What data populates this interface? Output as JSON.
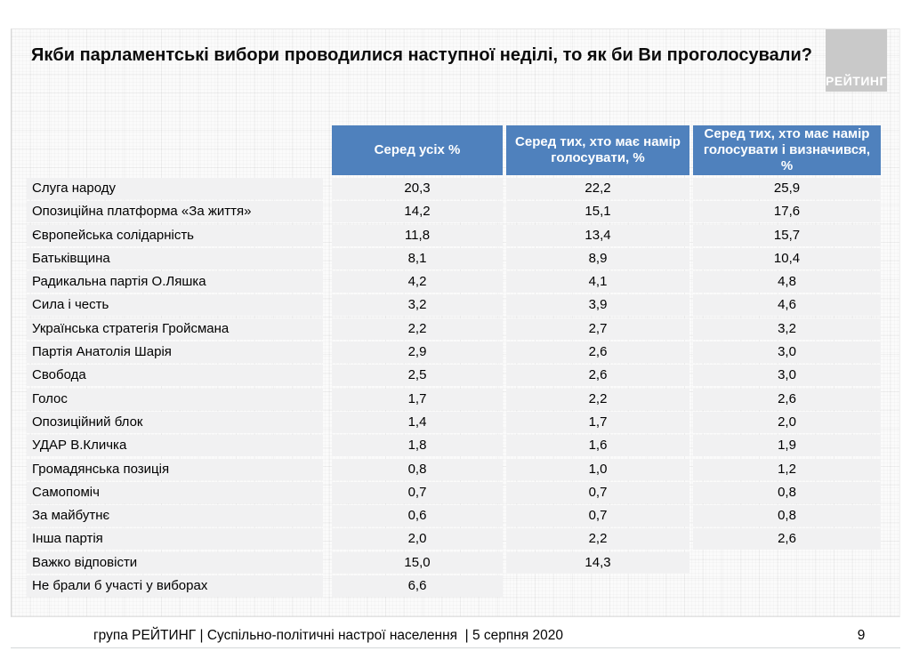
{
  "title": "Якби парламентські вибори проводилися наступної неділі, то як би Ви проголосували?",
  "logo": {
    "text": "РЕЙТИНГ"
  },
  "colors": {
    "header_blue": "#4f81bd",
    "row_gray": "#f1f1f2",
    "logo_gray": "#c9c9c9"
  },
  "chart_data": {
    "type": "table",
    "title": "Якби парламентські вибори проводилися наступної неділі, то як би Ви проголосували?",
    "columns": [
      "Серед усіх %",
      "Серед тих, хто має намір голосувати, %",
      "Серед тих, хто має намір голосувати і визначився, %"
    ],
    "rows": [
      {
        "label": "Слуга народу",
        "values": [
          "20,3",
          "22,2",
          "25,9"
        ]
      },
      {
        "label": "Опозиційна платформа «За життя»",
        "values": [
          "14,2",
          "15,1",
          "17,6"
        ]
      },
      {
        "label": "Європейська солідарність",
        "values": [
          "11,8",
          "13,4",
          "15,7"
        ]
      },
      {
        "label": "Батьківщина",
        "values": [
          "8,1",
          "8,9",
          "10,4"
        ]
      },
      {
        "label": "Радикальна партія О.Ляшка",
        "values": [
          "4,2",
          "4,1",
          "4,8"
        ]
      },
      {
        "label": "Сила і честь",
        "values": [
          "3,2",
          "3,9",
          "4,6"
        ]
      },
      {
        "label": "Українська стратегія Гройсмана",
        "values": [
          "2,2",
          "2,7",
          "3,2"
        ]
      },
      {
        "label": "Партія Анатолія Шарія",
        "values": [
          "2,9",
          "2,6",
          "3,0"
        ]
      },
      {
        "label": "Свобода",
        "values": [
          "2,5",
          "2,6",
          "3,0"
        ]
      },
      {
        "label": "Голос",
        "values": [
          "1,7",
          "2,2",
          "2,6"
        ]
      },
      {
        "label": "Опозиційний блок",
        "values": [
          "1,4",
          "1,7",
          "2,0"
        ]
      },
      {
        "label": "УДАР В.Кличка",
        "values": [
          "1,8",
          "1,6",
          "1,9"
        ]
      },
      {
        "label": "Громадянська позиція",
        "values": [
          "0,8",
          "1,0",
          "1,2"
        ]
      },
      {
        "label": "Самопоміч",
        "values": [
          "0,7",
          "0,7",
          "0,8"
        ]
      },
      {
        "label": "За майбутнє",
        "values": [
          "0,6",
          "0,7",
          "0,8"
        ]
      },
      {
        "label": "Інша партія",
        "values": [
          "2,0",
          "2,2",
          "2,6"
        ]
      },
      {
        "label": "Важко відповісти",
        "values": [
          "15,0",
          "14,3",
          null
        ]
      },
      {
        "label": "Не брали б участі у виборах",
        "values": [
          "6,6",
          null,
          null
        ]
      }
    ]
  },
  "footer": {
    "source": "група РЕЙТИНГ | Суспільно-політичні настрої населення  | 5 серпня 2020",
    "page": "9"
  }
}
